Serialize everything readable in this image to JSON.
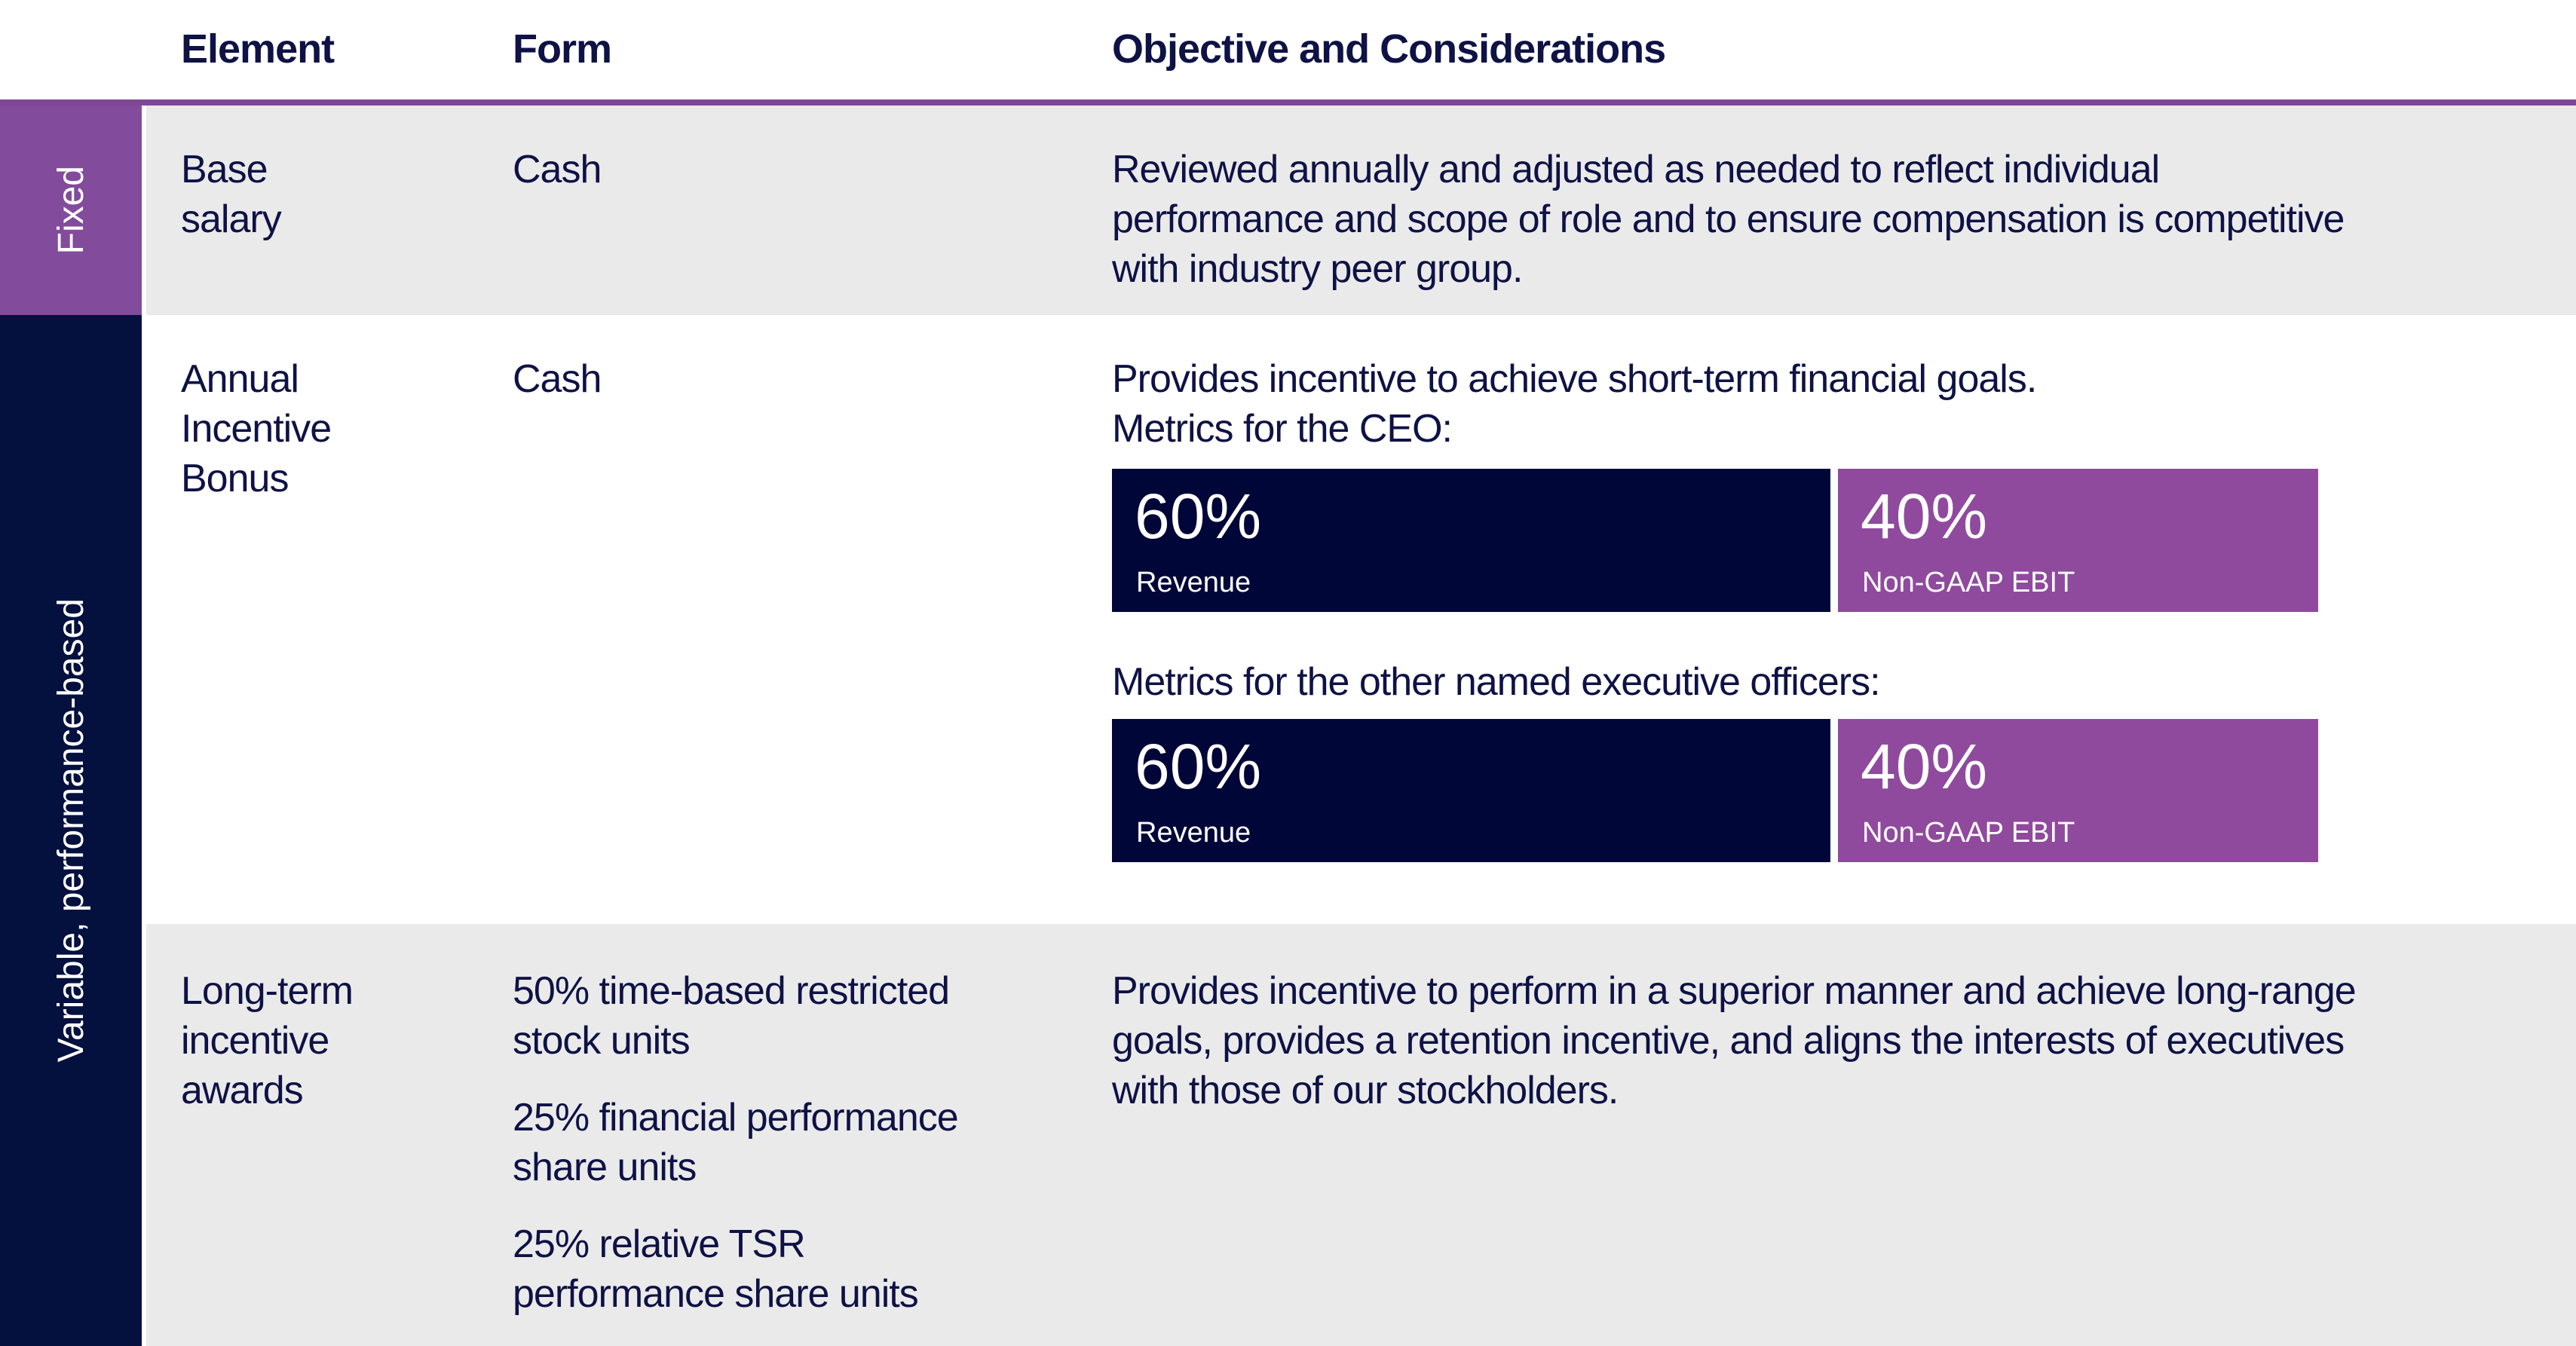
{
  "colors": {
    "text_navy": "#0E1245",
    "bar_navy": "#010638",
    "strip_navy": "#04103E",
    "strip_purple": "#834B9B",
    "bar_purple": "#8F4A9E",
    "header_rule_purple": "#7E4796",
    "row_gray": "#EAEAEA",
    "white": "#FFFFFF"
  },
  "header": {
    "columns": [
      "Element",
      "Form",
      "Objective and Considerations"
    ]
  },
  "groups": {
    "fixed": {
      "label": "Fixed"
    },
    "variable": {
      "label": "Variable, performance-based"
    }
  },
  "rows": {
    "base_salary": {
      "element": "Base salary",
      "form": "Cash",
      "objective": "Reviewed annually and adjusted as needed to reflect individual performance and scope of role and to ensure compensation is competitive with industry peer group."
    },
    "annual_incentive_bonus": {
      "element": "Annual Incentive Bonus",
      "form": "Cash",
      "objective": "Provides incentive to achieve short-term financial goals.",
      "ceo_metrics": {
        "heading": "Metrics for the CEO:",
        "segments": [
          {
            "pct": "60%",
            "label": "Revenue",
            "weight": 60
          },
          {
            "pct": "40%",
            "label": "Non-GAAP EBIT",
            "weight": 40
          }
        ]
      },
      "neo_metrics": {
        "heading": "Metrics for the other named executive officers:",
        "segments": [
          {
            "pct": "60%",
            "label": "Revenue",
            "weight": 60
          },
          {
            "pct": "40%",
            "label": "Non-GAAP EBIT",
            "weight": 40
          }
        ]
      }
    },
    "long_term_incentive": {
      "element": "Long-term incentive awards",
      "form_items": [
        "50% time-based restricted stock units",
        "25% financial performance share units",
        "25% relative TSR performance share units"
      ],
      "objective": "Provides incentive to perform in a superior manner and achieve long-range goals, provides a retention incentive, and aligns the interests of executives with those of our stockholders."
    }
  }
}
